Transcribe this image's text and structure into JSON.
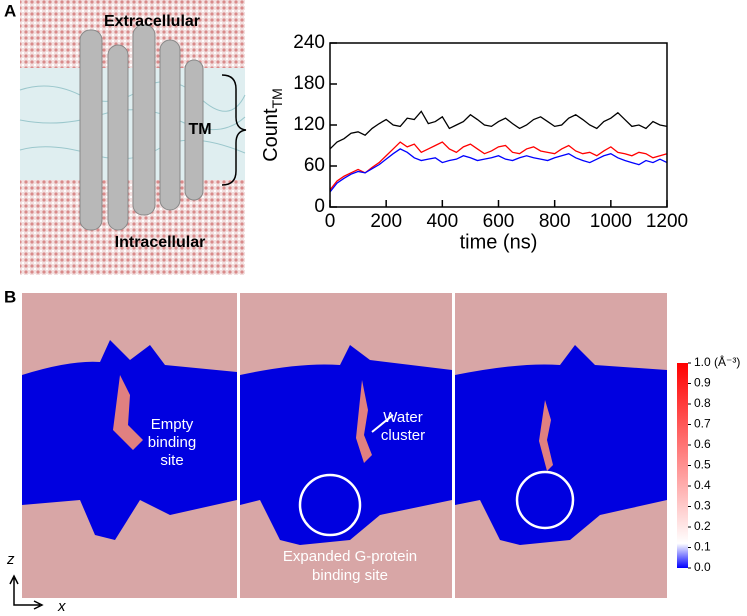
{
  "panel_a": {
    "label": "A",
    "snapshot": {
      "top": "Extracellular",
      "middle": "TM",
      "bottom": "Intracellular"
    }
  },
  "chart_data": {
    "type": "line",
    "ylabel": "Count",
    "ylabel_sub": "TM",
    "xlabel": "time (ns)",
    "x": [
      0,
      25,
      50,
      75,
      100,
      125,
      150,
      175,
      200,
      225,
      250,
      275,
      300,
      325,
      350,
      375,
      400,
      425,
      450,
      475,
      500,
      525,
      550,
      575,
      600,
      625,
      650,
      675,
      700,
      725,
      750,
      775,
      800,
      825,
      850,
      875,
      900,
      925,
      950,
      975,
      1000,
      1025,
      1050,
      1075,
      1100,
      1125,
      1150,
      1175,
      1200
    ],
    "series": [
      {
        "color": "#000000",
        "values": [
          85,
          95,
          100,
          108,
          110,
          105,
          115,
          122,
          128,
          120,
          118,
          130,
          128,
          140,
          122,
          125,
          132,
          115,
          120,
          125,
          135,
          128,
          120,
          118,
          125,
          130,
          122,
          115,
          120,
          128,
          132,
          125,
          118,
          120,
          130,
          135,
          128,
          120,
          115,
          125,
          130,
          138,
          128,
          118,
          120,
          115,
          125,
          120,
          118
        ]
      },
      {
        "color": "#ff0000",
        "values": [
          25,
          38,
          45,
          50,
          55,
          50,
          58,
          65,
          75,
          85,
          95,
          88,
          92,
          80,
          85,
          90,
          95,
          85,
          80,
          88,
          92,
          85,
          78,
          82,
          88,
          90,
          80,
          78,
          85,
          88,
          82,
          80,
          78,
          85,
          90,
          82,
          78,
          80,
          75,
          82,
          88,
          80,
          78,
          75,
          80,
          78,
          72,
          75,
          78
        ]
      },
      {
        "color": "#0000ff",
        "values": [
          22,
          35,
          42,
          48,
          52,
          50,
          56,
          62,
          70,
          78,
          85,
          80,
          72,
          68,
          70,
          72,
          65,
          68,
          70,
          75,
          72,
          68,
          70,
          72,
          75,
          70,
          68,
          72,
          75,
          72,
          70,
          68,
          72,
          75,
          78,
          72,
          68,
          65,
          70,
          75,
          78,
          72,
          68,
          65,
          62,
          68,
          65,
          70,
          65
        ]
      }
    ],
    "xlim": [
      0,
      1200
    ],
    "ylim": [
      0,
      240
    ],
    "xticks": [
      0,
      200,
      400,
      600,
      800,
      1000,
      1200
    ],
    "yticks": [
      0,
      60,
      120,
      180,
      240
    ]
  },
  "panel_b": {
    "label": "B",
    "annotations": {
      "empty": [
        "Empty",
        "binding",
        "site"
      ],
      "water": [
        "Water",
        "cluster"
      ],
      "expanded": [
        "Expanded G-protein",
        "binding site"
      ]
    },
    "axes": {
      "z": "z",
      "x": "x"
    },
    "colorbar": {
      "range": [
        0,
        1.0
      ],
      "ticks": [
        {
          "value": 1.0,
          "label": "1.0 (Å⁻³)"
        },
        0.9,
        0.8,
        0.7,
        0.6,
        0.5,
        0.4,
        0.3,
        0.2,
        0.1,
        {
          "value": 0,
          "label": "0.0"
        }
      ]
    }
  }
}
